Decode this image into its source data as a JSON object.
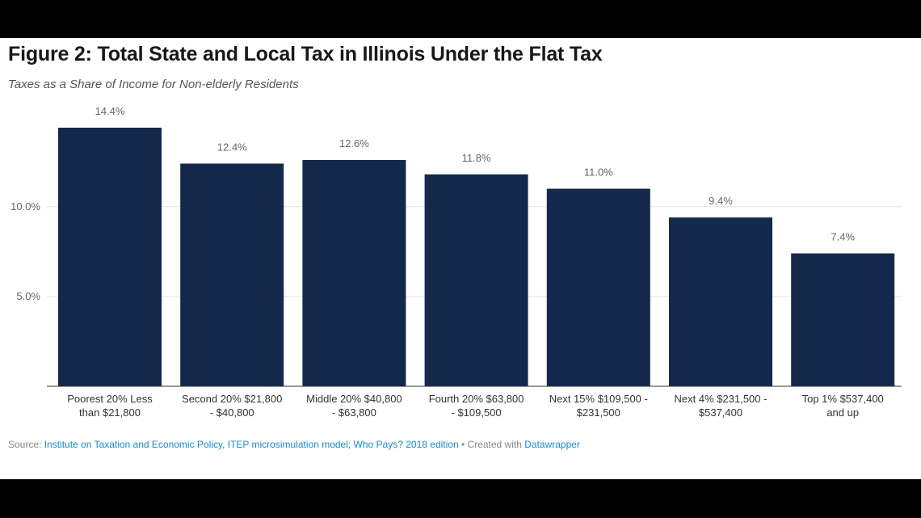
{
  "title": "Figure 2: Total State and Local Tax in Illinois Under the Flat Tax",
  "subtitle": "Taxes as a Share of Income for Non-elderly Residents",
  "footer": {
    "source_label": "Source:",
    "source_text": "Institute on Taxation and Economic Policy, ITEP microsimulation model; Who Pays? 2018 edition",
    "separator": "•",
    "created_label": "Created with",
    "created_tool": "Datawrapper"
  },
  "colors": {
    "bar": "#14284b",
    "grid": "#e3e3e3",
    "text": "#666666",
    "link": "#1a8ccc"
  },
  "chart_data": {
    "type": "bar",
    "title": "Figure 2: Total State and Local Tax in Illinois Under the Flat Tax",
    "subtitle": "Taxes as a Share of Income for Non-elderly Residents",
    "categories": [
      [
        "Poorest 20% Less",
        "than $21,800"
      ],
      [
        "Second 20% $21,800",
        "- $40,800"
      ],
      [
        "Middle 20% $40,800",
        "- $63,800"
      ],
      [
        "Fourth 20% $63,800",
        "- $109,500"
      ],
      [
        "Next 15% $109,500 -",
        "$231,500"
      ],
      [
        "Next 4% $231,500 -",
        "$537,400"
      ],
      [
        "Top 1% $537,400",
        "and up"
      ]
    ],
    "values": [
      14.4,
      12.4,
      12.6,
      11.8,
      11.0,
      9.4,
      7.4
    ],
    "value_labels": [
      "14.4%",
      "12.4%",
      "12.6%",
      "11.8%",
      "11.0%",
      "9.4%",
      "7.4%"
    ],
    "yticks": [
      {
        "value": 5,
        "label": "5.0%"
      },
      {
        "value": 10,
        "label": "10.0%"
      }
    ],
    "ylim": [
      0,
      14.4
    ],
    "xlabel": "",
    "ylabel": "",
    "grid": true,
    "legend": "none"
  }
}
